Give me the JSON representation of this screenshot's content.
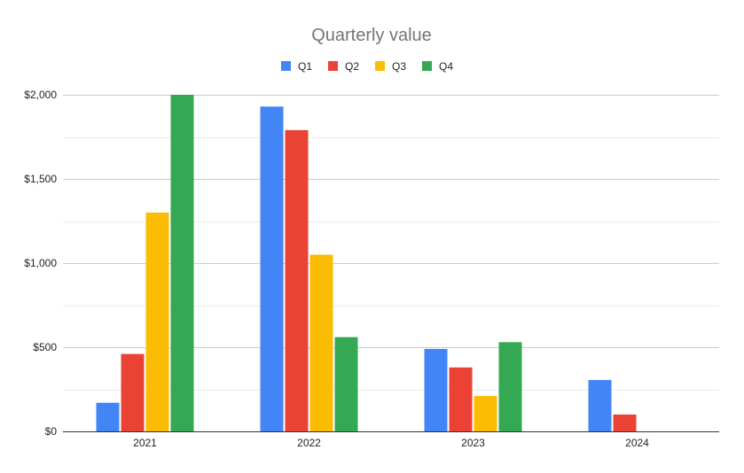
{
  "chart_data": {
    "type": "bar",
    "title": "Quarterly value",
    "xlabel": "",
    "ylabel": "",
    "categories": [
      "2021",
      "2022",
      "2023",
      "2024"
    ],
    "series": [
      {
        "name": "Q1",
        "color": "#4285f4",
        "values": [
          170,
          1930,
          490,
          305
        ]
      },
      {
        "name": "Q2",
        "color": "#ea4335",
        "values": [
          460,
          1790,
          380,
          100
        ]
      },
      {
        "name": "Q3",
        "color": "#fbbc04",
        "values": [
          1300,
          1050,
          210,
          null
        ]
      },
      {
        "name": "Q4",
        "color": "#34a853",
        "values": [
          2000,
          560,
          530,
          null
        ]
      }
    ],
    "ylim": [
      0,
      2000
    ],
    "y_ticks": [
      0,
      500,
      1000,
      1500,
      2000
    ],
    "y_tick_labels": [
      "$0",
      "$500",
      "$1,000",
      "$1,500",
      "$2,000"
    ],
    "grid": true,
    "legend_position": "top-center"
  }
}
